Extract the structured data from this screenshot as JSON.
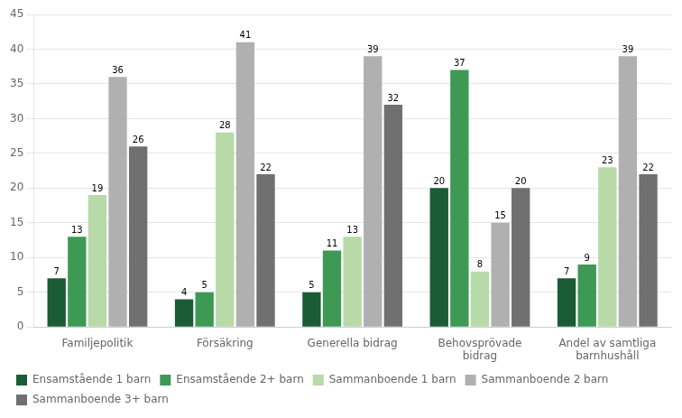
{
  "chart_data": {
    "type": "bar",
    "categories": [
      "Familjepolitik",
      "Försäkring",
      "Generella bidrag",
      "Behovsprövade\nbidrag",
      "Andel av samtliga\nbarnhushåll"
    ],
    "series": [
      {
        "name": "Ensamstående 1 barn",
        "color": "#1a5c36",
        "values": [
          7,
          4,
          5,
          20,
          7
        ]
      },
      {
        "name": "Ensamstående 2+ barn",
        "color": "#3d9954",
        "values": [
          13,
          5,
          11,
          37,
          9
        ]
      },
      {
        "name": "Sammanboende 1 barn",
        "color": "#b8d9a8",
        "values": [
          19,
          28,
          13,
          8,
          23
        ]
      },
      {
        "name": "Sammanboende 2 barn",
        "color": "#b0b0b0",
        "values": [
          36,
          41,
          39,
          15,
          39
        ]
      },
      {
        "name": "Sammanboende 3+ barn",
        "color": "#707070",
        "values": [
          26,
          22,
          32,
          20,
          22
        ]
      }
    ],
    "ylim": [
      0,
      45
    ],
    "yticks": [
      0,
      5,
      10,
      15,
      20,
      25,
      30,
      35,
      40,
      45
    ],
    "grid": true,
    "legend": "lower left",
    "data_labels": true
  }
}
